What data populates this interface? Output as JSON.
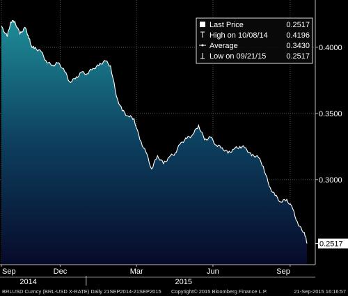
{
  "chart_data": {
    "type": "area",
    "x": [
      "2014-09-22",
      "2014-09-29",
      "2014-10-03",
      "2014-10-08",
      "2014-10-14",
      "2014-10-20",
      "2014-10-24",
      "2014-10-27",
      "2014-10-31",
      "2014-11-07",
      "2014-11-14",
      "2014-11-21",
      "2014-11-28",
      "2014-12-05",
      "2014-12-12",
      "2014-12-19",
      "2014-12-26",
      "2015-01-02",
      "2015-01-09",
      "2015-01-16",
      "2015-01-23",
      "2015-01-30",
      "2015-02-06",
      "2015-02-13",
      "2015-02-20",
      "2015-02-27",
      "2015-03-06",
      "2015-03-13",
      "2015-03-20",
      "2015-03-27",
      "2015-04-03",
      "2015-04-10",
      "2015-04-17",
      "2015-04-24",
      "2015-05-01",
      "2015-05-08",
      "2015-05-15",
      "2015-05-22",
      "2015-05-29",
      "2015-06-05",
      "2015-06-12",
      "2015-06-19",
      "2015-06-26",
      "2015-07-03",
      "2015-07-10",
      "2015-07-17",
      "2015-07-24",
      "2015-07-31",
      "2015-08-07",
      "2015-08-14",
      "2015-08-21",
      "2015-08-28",
      "2015-09-04",
      "2015-09-11",
      "2015-09-18",
      "2015-09-21"
    ],
    "series": [
      {
        "values": [
          0.416,
          0.408,
          0.419,
          0.4196,
          0.41,
          0.415,
          0.409,
          0.402,
          0.399,
          0.398,
          0.39,
          0.386,
          0.388,
          0.384,
          0.374,
          0.376,
          0.381,
          0.38,
          0.384,
          0.386,
          0.39,
          0.386,
          0.363,
          0.352,
          0.348,
          0.346,
          0.33,
          0.321,
          0.308,
          0.318,
          0.312,
          0.317,
          0.32,
          0.328,
          0.331,
          0.334,
          0.341,
          0.33,
          0.332,
          0.326,
          0.324,
          0.32,
          0.323,
          0.325,
          0.324,
          0.318,
          0.318,
          0.31,
          0.295,
          0.288,
          0.283,
          0.285,
          0.278,
          0.265,
          0.26,
          0.2517
        ]
      }
    ],
    "title": "",
    "xlabel": "",
    "ylabel": "",
    "xlim": [
      "2014-09-22",
      "2015-09-21"
    ],
    "ylim": [
      0.2357,
      0.4357
    ],
    "y_ticks": [
      {
        "value": 0.3,
        "label": "0.3000"
      },
      {
        "value": 0.35,
        "label": "0.3500"
      },
      {
        "value": 0.4,
        "label": "0.4000"
      }
    ],
    "x_ticks": [
      {
        "date": "2014-09-22",
        "label": "Sep"
      },
      {
        "date": "2014-12-01",
        "label": "Dec"
      },
      {
        "date": "2015-03-02",
        "label": "Mar"
      },
      {
        "date": "2015-06-01",
        "label": "Jun"
      },
      {
        "date": "2015-09-01",
        "label": "Sep"
      }
    ],
    "year_labels": [
      {
        "date": "2014-10-24",
        "label": "2014"
      },
      {
        "date": "2015-04-27",
        "label": "2015"
      }
    ],
    "grid": true,
    "legend_position": "top-right",
    "last_value": {
      "value": 0.2517,
      "label": "0.2517"
    },
    "legend": [
      {
        "icon": "square-icon",
        "label": "Last Price",
        "value": "0.2517"
      },
      {
        "icon": "high-marker-icon",
        "label": "High on 10/08/14",
        "value": "0.4196"
      },
      {
        "icon": "average-marker-icon",
        "label": "Average",
        "value": "0.3430"
      },
      {
        "icon": "low-marker-icon",
        "label": "Low on 09/21/15",
        "value": "0.2517"
      }
    ],
    "colors": {
      "fill_top": "#1e8c96",
      "fill_mid": "#0d3f5e",
      "fill_bottom": "#070a2a",
      "line": "#ffffff",
      "grid": "#555555",
      "background": "#000000"
    }
  },
  "footer": {
    "left": "BRLUSD Curncy (BRL-USD X-RATE)  Daily 21SEP2014-21SEP2015",
    "center": "Copyright© 2015 Bloomberg Finance L.P.",
    "right": "21-Sep-2015 16:16:57"
  }
}
